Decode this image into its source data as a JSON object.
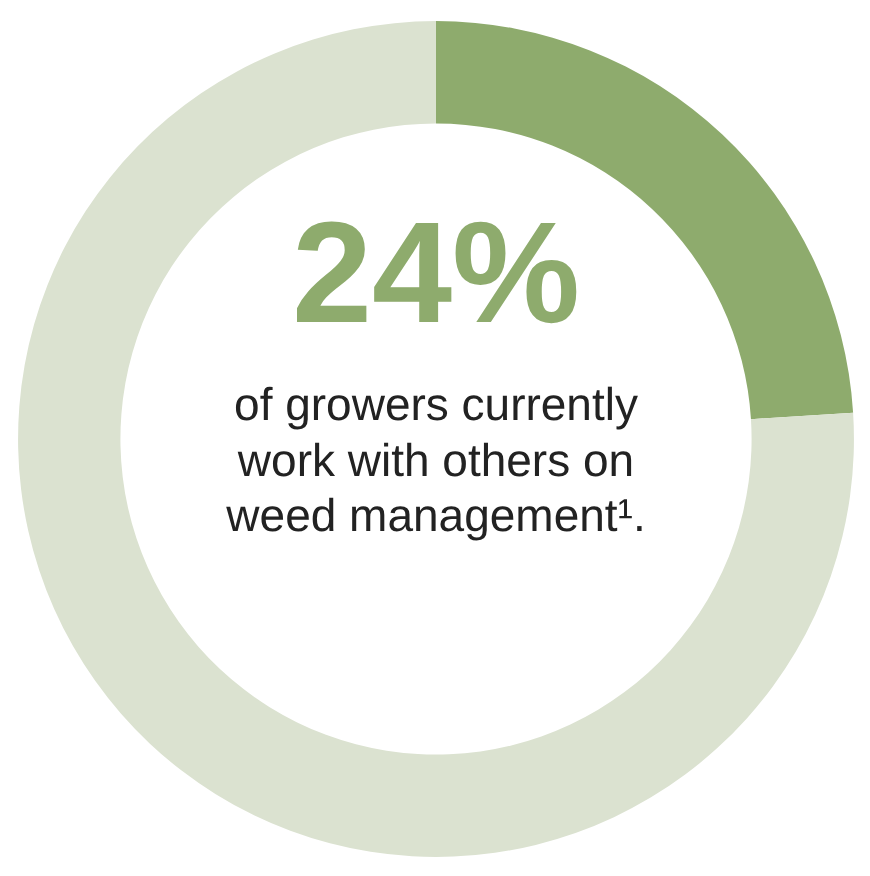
{
  "chart_data": {
    "type": "donut",
    "categories": [
      null,
      null
    ],
    "values": [
      24,
      76
    ],
    "colors": [
      "#8eab6d",
      "#dbe2d0"
    ],
    "value_labels": [
      "24%",
      null
    ],
    "annotations": [
      "of growers currently work with others on weed management¹."
    ]
  }
}
